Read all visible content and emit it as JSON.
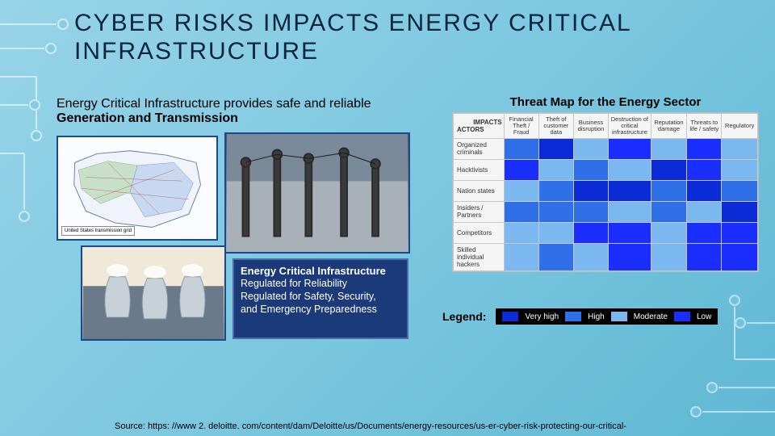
{
  "title": "CYBER RISKS IMPACTS ENERGY CRITICAL INFRASTRUCTURE",
  "left": {
    "caption_prefix": "Energy Critical Infrastructure provides safe and reliable",
    "caption_bold": "Generation and Transmission",
    "usmap_label": "United States\ntransmission grid",
    "callout_title": "Energy Critical Infrastructure",
    "callout_body": "Regulated for Reliability\nRegulated for Safety, Security,\nand Emergency Preparedness"
  },
  "threat": {
    "title": "Threat Map for the Energy Sector",
    "corner_top": "IMPACTS",
    "corner_left": "ACTORS",
    "columns": [
      "Financial Theft / Fraud",
      "Theft of customer data",
      "Business disruption",
      "Destruction of critical infrastructure",
      "Reputation damage",
      "Threats to life / safety",
      "Regulatory"
    ],
    "rows": [
      "Organized criminals",
      "Hacktivists",
      "Nation states",
      "Insiders / Partners",
      "Competitors",
      "Skilled individual hackers"
    ],
    "matrix": [
      [
        "high",
        "veryhigh",
        "moderate",
        "low",
        "moderate",
        "low",
        "moderate"
      ],
      [
        "low",
        "moderate",
        "high",
        "moderate",
        "veryhigh",
        "low",
        "moderate"
      ],
      [
        "moderate",
        "high",
        "veryhigh",
        "veryhigh",
        "high",
        "veryhigh",
        "high"
      ],
      [
        "high",
        "high",
        "high",
        "moderate",
        "high",
        "moderate",
        "veryhigh"
      ],
      [
        "moderate",
        "moderate",
        "low",
        "low",
        "moderate",
        "low",
        "low"
      ],
      [
        "moderate",
        "high",
        "moderate",
        "low",
        "moderate",
        "low",
        "low"
      ]
    ],
    "level_colors": {
      "veryhigh": "#0b2bd6",
      "high": "#2f6fe8",
      "moderate": "#7ab8ef",
      "low": "#1a2fff",
      "none": "#ffffff"
    }
  },
  "legend": {
    "label": "Legend:",
    "items": [
      {
        "key": "veryhigh",
        "label": "Very high"
      },
      {
        "key": "high",
        "label": "High"
      },
      {
        "key": "moderate",
        "label": "Moderate"
      },
      {
        "key": "low",
        "label": "Low"
      }
    ]
  },
  "source_label": "Source:",
  "source_url": "https: //www 2. deloitte. com/content/dam/Deloitte/us/Documents/energy-resources/us-er-cyber-risk-protecting-our-critical-",
  "background": {
    "gradient": [
      "#98d4e8",
      "#7cc8e0",
      "#5fb8d4"
    ],
    "circuit_stroke": "#ffffff"
  }
}
